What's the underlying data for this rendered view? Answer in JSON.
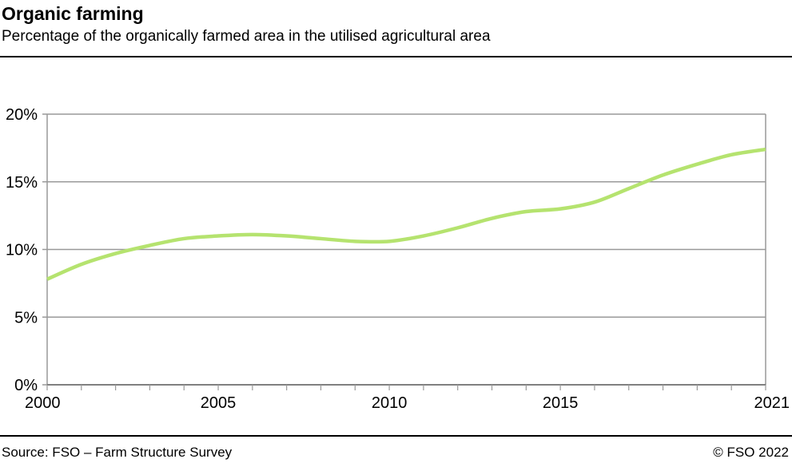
{
  "chart_data": {
    "type": "line",
    "title": "Organic farming",
    "subtitle": "Percentage of the organically farmed area in the utilised agricultural area",
    "x": [
      2000,
      2001,
      2002,
      2003,
      2004,
      2005,
      2006,
      2007,
      2008,
      2009,
      2010,
      2011,
      2012,
      2013,
      2014,
      2015,
      2016,
      2017,
      2018,
      2019,
      2020,
      2021
    ],
    "series": [
      {
        "values": [
          7.8,
          8.9,
          9.7,
          10.3,
          10.8,
          11.0,
          11.1,
          11.0,
          10.8,
          10.6,
          10.6,
          11.0,
          11.6,
          12.3,
          12.8,
          13.0,
          13.5,
          14.5,
          15.5,
          16.3,
          17.0,
          17.4
        ],
        "color": "#b5e36f"
      }
    ],
    "xlim": [
      2000,
      2021
    ],
    "ylim": [
      0,
      20
    ],
    "xticks": [
      "2000",
      "2005",
      "2010",
      "2015",
      "2021"
    ],
    "yticks": [
      "0%",
      "5%",
      "10%",
      "15%",
      "20%"
    ],
    "grid": true,
    "xlabel": "",
    "ylabel": ""
  },
  "footer": {
    "source": "Source: FSO – Farm Structure Survey",
    "copyright": "© FSO 2022"
  }
}
